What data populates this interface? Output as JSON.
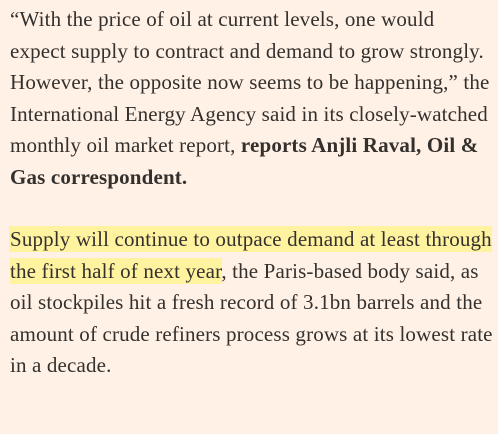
{
  "article": {
    "paragraph1": {
      "quote": "“With the price of oil at current levels, one would expect supply to contract and demand to grow strongly. However, the opposite now seems to be happening,” the International Energy Agency said in its closely-watched monthly oil market report, ",
      "byline": "reports Anjli Raval, Oil & Gas correspondent."
    },
    "paragraph2": {
      "highlighted": "Supply will continue to outpace demand at least through the first half of next year",
      "rest": ", the Paris-based body said, as oil stockpiles hit a fresh record of 3.1bn barrels and the amount of crude refiners process grows at its lowest rate in a decade."
    }
  },
  "colors": {
    "background": "#fff1e5",
    "text": "#33302e",
    "highlight": "#fff3a0"
  }
}
